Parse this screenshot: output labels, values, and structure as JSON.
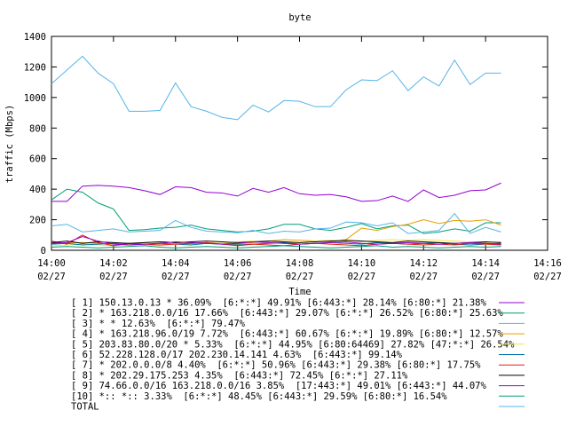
{
  "chart_data": {
    "type": "line",
    "title": "byte",
    "ylabel": "traffic (Mbps)",
    "xlabel": "Time",
    "x": [
      0,
      0.5,
      1,
      1.5,
      2,
      2.5,
      3,
      3.5,
      4,
      4.5,
      5,
      5.5,
      6,
      6.5,
      7,
      7.5,
      8,
      8.5,
      9,
      9.5,
      10,
      10.5,
      11,
      11.5,
      12,
      12.5,
      13,
      13.5,
      14,
      14.5
    ],
    "xlim": [
      0,
      16
    ],
    "xticks": [
      {
        "value": 0,
        "label": "14:00\n02/27"
      },
      {
        "value": 2,
        "label": "14:02\n02/27"
      },
      {
        "value": 4,
        "label": "14:04\n02/27"
      },
      {
        "value": 6,
        "label": "14:06\n02/27"
      },
      {
        "value": 8,
        "label": "14:08\n02/27"
      },
      {
        "value": 10,
        "label": "14:10\n02/27"
      },
      {
        "value": 12,
        "label": "14:12\n02/27"
      },
      {
        "value": 14,
        "label": "14:14\n02/27"
      },
      {
        "value": 16,
        "label": "14:16\n02/27"
      }
    ],
    "ylim": [
      0,
      1400
    ],
    "yticks": [
      0,
      200,
      400,
      600,
      800,
      1000,
      1200,
      1400
    ],
    "series": [
      {
        "name": "[ 1] 150.13.0.13 * 36.09%  [6:*:*] 49.91% [6:443:*] 28.14% [6:80:*] 21.38%",
        "color": "#9400d3",
        "values": [
          320,
          320,
          420,
          425,
          420,
          410,
          390,
          365,
          415,
          410,
          380,
          375,
          355,
          405,
          380,
          410,
          370,
          360,
          365,
          350,
          320,
          325,
          355,
          320,
          395,
          345,
          360,
          390,
          395,
          440
        ]
      },
      {
        "name": "[ 2] * 163.218.0.0/16 17.66%  [6:443:*] 29.07% [6:*:*] 26.52% [6:80:*] 25.63%",
        "color": "#009e73",
        "values": [
          330,
          400,
          380,
          310,
          270,
          130,
          135,
          145,
          150,
          165,
          140,
          130,
          120,
          125,
          140,
          170,
          170,
          140,
          130,
          150,
          175,
          140,
          160,
          165,
          110,
          120,
          140,
          125,
          180,
          180
        ]
      },
      {
        "name": "[ 3] * * 12.63%  [6:*:*] 79.47%",
        "color": "#56b4e9",
        "values": [
          160,
          170,
          120,
          130,
          140,
          120,
          125,
          130,
          195,
          150,
          125,
          120,
          115,
          130,
          110,
          125,
          120,
          140,
          145,
          185,
          180,
          160,
          180,
          110,
          120,
          130,
          240,
          110,
          150,
          120
        ]
      },
      {
        "name": "[ 4] * 163.218.96.0/19 7.72%  [6:443:*] 60.67% [6:*:*] 19.89% [6:80:*] 12.57%",
        "color": "#e69f00",
        "values": [
          40,
          50,
          50,
          45,
          40,
          45,
          50,
          55,
          50,
          45,
          50,
          45,
          40,
          50,
          60,
          70,
          65,
          60,
          55,
          70,
          145,
          130,
          155,
          170,
          200,
          175,
          195,
          190,
          200,
          165
        ]
      },
      {
        "name": "[ 5] 203.83.80.0/20 * 5.33%  [6:*:*] 44.95% [6:80:64469] 27.82% [47:*:*] 26.54%",
        "color": "#f0e442",
        "values": [
          30,
          35,
          40,
          35,
          30,
          40,
          35,
          30,
          45,
          40,
          50,
          45,
          55,
          60,
          50,
          45,
          50,
          60,
          65,
          60,
          55,
          65,
          70,
          65,
          70,
          65,
          60,
          55,
          50,
          55
        ]
      },
      {
        "name": "[ 6] 52.228.128.0/17 202.230.14.141 4.63%  [6:443:*] 99.14%",
        "color": "#0072b2",
        "values": [
          40,
          45,
          35,
          40,
          45,
          35,
          40,
          45,
          40,
          35,
          45,
          40,
          35,
          40,
          45,
          50,
          40,
          45,
          50,
          45,
          40,
          50,
          45,
          40,
          45,
          50,
          40,
          35,
          40,
          45
        ]
      },
      {
        "name": "[ 7] * 202.0.0.0/8 4.40%  [6:*:*] 50.96% [6:443:*] 29.38% [6:80:*] 17.75%",
        "color": "#e51e10",
        "values": [
          60,
          40,
          100,
          50,
          30,
          45,
          40,
          35,
          40,
          45,
          50,
          40,
          30,
          40,
          35,
          30,
          40,
          45,
          40,
          35,
          30,
          40,
          45,
          40,
          35,
          40,
          35,
          45,
          40,
          35
        ]
      },
      {
        "name": "[ 8] * 202.29.175.253 4.35%  [6:443:*] 72.45% [6:*:*] 27.11%",
        "color": "#000000",
        "values": [
          50,
          60,
          45,
          55,
          50,
          45,
          50,
          55,
          50,
          55,
          60,
          55,
          50,
          55,
          60,
          55,
          50,
          55,
          60,
          65,
          60,
          55,
          50,
          60,
          55,
          50,
          45,
          50,
          55,
          50
        ]
      },
      {
        "name": "[ 9] 74.66.0.0/16 163.218.0.0/16 3.85%  [17:443:*] 49.01% [6:443:*] 44.07%",
        "color": "#9400d3",
        "values": [
          45,
          50,
          90,
          60,
          40,
          35,
          40,
          45,
          55,
          50,
          45,
          40,
          45,
          55,
          50,
          45,
          40,
          45,
          50,
          55,
          45,
          40,
          45,
          50,
          45,
          40,
          45,
          50,
          45,
          40
        ]
      },
      {
        "name": "[10] *:: *:: 3.33%  [6:*:*] 48.45% [6:443:*] 29.59% [6:80:*] 16.54%",
        "color": "#009e73",
        "values": [
          20,
          25,
          20,
          15,
          20,
          25,
          30,
          20,
          15,
          20,
          25,
          20,
          15,
          20,
          25,
          30,
          25,
          20,
          15,
          20,
          25,
          30,
          20,
          25,
          20,
          15,
          20,
          25,
          20,
          25
        ]
      },
      {
        "name": "TOTAL",
        "color": "#56b4e9",
        "values": [
          1090,
          1180,
          1270,
          1160,
          1090,
          910,
          910,
          915,
          1095,
          940,
          910,
          870,
          855,
          950,
          905,
          980,
          975,
          940,
          940,
          1050,
          1115,
          1110,
          1175,
          1045,
          1135,
          1075,
          1245,
          1085,
          1160,
          1160
        ]
      }
    ]
  }
}
